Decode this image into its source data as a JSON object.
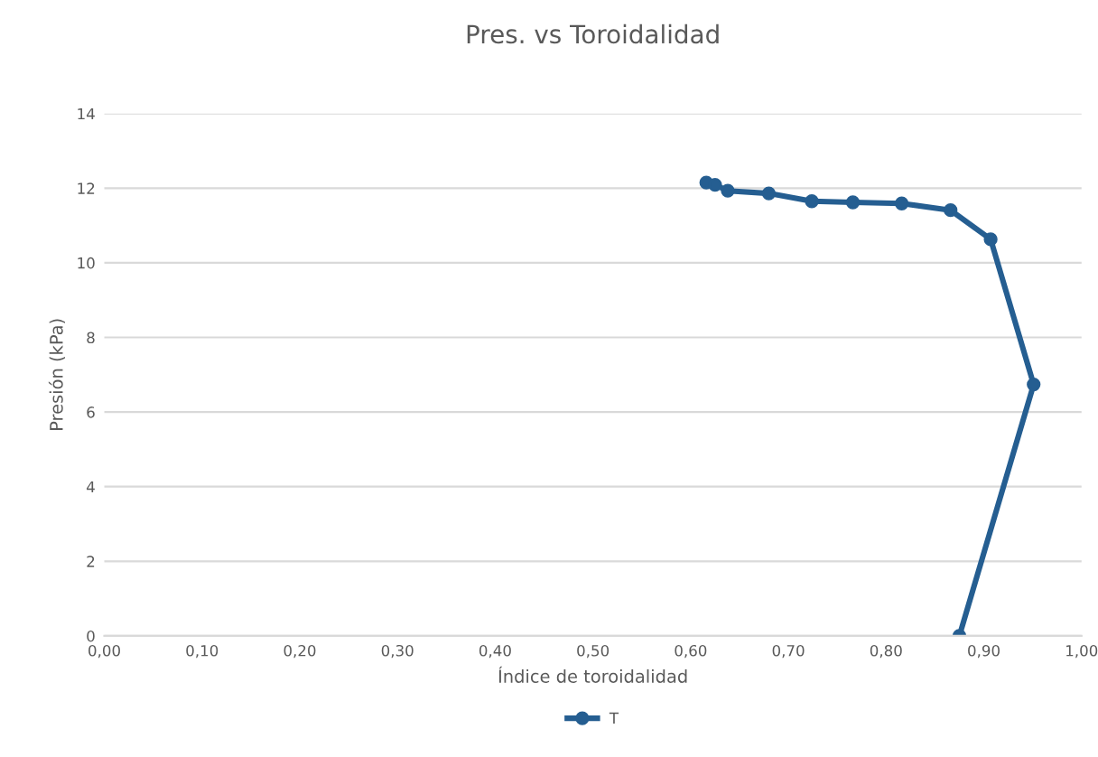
{
  "chart_data": {
    "type": "line",
    "title": "Pres. vs Toroidalidad",
    "xlabel": "Índice de toroidalidad",
    "ylabel": "Presión (kPa)",
    "xlim": [
      0,
      1
    ],
    "xticks": [
      {
        "value": 0,
        "label": "0,00"
      },
      {
        "value": 0.1,
        "label": "0,10"
      },
      {
        "value": 0.2,
        "label": "0,20"
      },
      {
        "value": 0.3,
        "label": "0,30"
      },
      {
        "value": 0.4,
        "label": "0,40"
      },
      {
        "value": 0.5,
        "label": "0,50"
      },
      {
        "value": 0.6,
        "label": "0,60"
      },
      {
        "value": 0.7,
        "label": "0,70"
      },
      {
        "value": 0.8,
        "label": "0,80"
      },
      {
        "value": 0.9,
        "label": "0,90"
      },
      {
        "value": 1,
        "label": "1,00"
      }
    ],
    "ylim": [
      0,
      14
    ],
    "yticks": [
      0,
      2,
      4,
      6,
      8,
      10,
      12,
      14
    ],
    "grid": "y",
    "legend": "bottom",
    "marker": "circle",
    "line_style": "solid",
    "series": [
      {
        "name": "T",
        "color": "#255e91",
        "x": [
          0.616,
          0.625,
          0.638,
          0.68,
          0.724,
          0.766,
          0.816,
          0.866,
          0.907,
          0.951,
          0.875
        ],
        "values": [
          12.15,
          12.09,
          11.93,
          11.86,
          11.65,
          11.62,
          11.59,
          11.41,
          10.63,
          6.74,
          0
        ]
      }
    ]
  }
}
